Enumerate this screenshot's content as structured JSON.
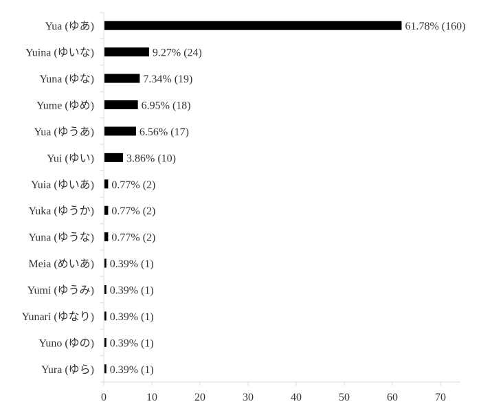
{
  "chart_data": {
    "type": "bar",
    "orientation": "horizontal",
    "categories": [
      "Yua (ゆあ)",
      "Yuina (ゆいな)",
      "Yuna (ゆな)",
      "Yume (ゆめ)",
      "Yua (ゆうあ)",
      "Yui (ゆい)",
      "Yuia (ゆいあ)",
      "Yuka (ゆうか)",
      "Yuna (ゆうな)",
      "Meia (めいあ)",
      "Yumi (ゆうみ)",
      "Yunari (ゆなり)",
      "Yuno (ゆの)",
      "Yura (ゆら)"
    ],
    "values": [
      61.78,
      9.27,
      7.34,
      6.95,
      6.56,
      3.86,
      0.77,
      0.77,
      0.77,
      0.39,
      0.39,
      0.39,
      0.39,
      0.39
    ],
    "data_labels": [
      "61.78% (160)",
      "9.27% (24)",
      "7.34% (19)",
      "6.95% (18)",
      "6.56% (17)",
      "3.86% (10)",
      "0.77% (2)",
      "0.77% (2)",
      "0.77% (2)",
      "0.39% (1)",
      "0.39% (1)",
      "0.39% (1)",
      "0.39% (1)",
      "0.39% (1)"
    ],
    "xticks": [
      "0",
      "10",
      "20",
      "30",
      "40",
      "50",
      "60",
      "70"
    ],
    "xlim": [
      0,
      70
    ],
    "title": "",
    "xlabel": "",
    "ylabel": "",
    "grid": false,
    "bar_color": "#000000"
  }
}
